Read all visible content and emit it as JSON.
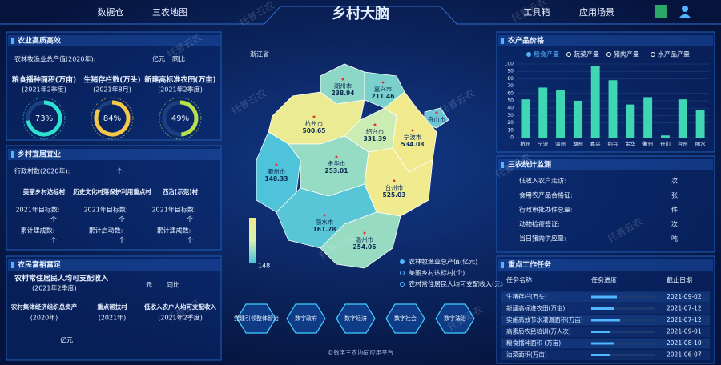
{
  "header": {
    "nav_left": [
      "数据仓",
      "三农地图"
    ],
    "title": "乡村大脑",
    "nav_right": [
      "工具箱",
      "应用场景"
    ]
  },
  "watermark": "托普云农",
  "agri_quality": {
    "title": "农业高质高效",
    "output_label": "农林牧渔业总产值(2020年):",
    "output_unit": "亿元",
    "yoy": "同比",
    "gauges": [
      {
        "name": "粮食播种面积(万亩)",
        "period": "(2021年2季度)",
        "value": 73,
        "label": "73%"
      },
      {
        "name": "生猪存栏数(万头)",
        "period": "(2021年8月)",
        "value": 84,
        "label": "84%"
      },
      {
        "name": "新建高标准农田(万亩)",
        "period": "(2021年2季度)",
        "value": 49,
        "label": "49%"
      }
    ]
  },
  "livable": {
    "title": "乡村宜居宜业",
    "villages_label": "行政村数(2020年):",
    "villages_unit": "个",
    "columns": [
      {
        "name": "美丽乡村达标村",
        "target": "2021年目标数:",
        "target_unit": "个",
        "done": "累计建成数:",
        "done_unit": "个"
      },
      {
        "name": "历史文化村落保护利用重点村",
        "target": "2021年目标数:",
        "target_unit": "个",
        "done": "累计启动数:",
        "done_unit": "个"
      },
      {
        "name": "西治(示范)村",
        "target": "2021年目标数:",
        "target_unit": "个",
        "done": "累计建成数:",
        "done_unit": "个"
      }
    ]
  },
  "income": {
    "title": "农民富裕富足",
    "income_label": "农村常住居民人均可支配收入",
    "income_period": "(2021年2季度)",
    "income_unit": "元",
    "yoy": "同比",
    "items": [
      {
        "name": "农村集体经济组织总资产",
        "period": "(2020年)",
        "unit": "亿元"
      },
      {
        "name": "重点帮扶村",
        "period": "(2021年)"
      },
      {
        "name": "低收入农户人均可支配收入",
        "period": "(2021年2季度)"
      }
    ]
  },
  "map": {
    "title": "浙江省",
    "scale_min": 148,
    "regions": [
      {
        "name": "湖州市",
        "value": 238.94
      },
      {
        "name": "嘉兴市",
        "value": 211.46
      },
      {
        "name": "舟山市"
      },
      {
        "name": "杭州市",
        "value": 500.65
      },
      {
        "name": "绍兴市",
        "value": 331.39
      },
      {
        "name": "宁波市",
        "value": 534.08
      },
      {
        "name": "衢州市",
        "value": 148.33
      },
      {
        "name": "金华市",
        "value": 253.01
      },
      {
        "name": "台州市",
        "value": 525.03
      },
      {
        "name": "丽水市",
        "value": 161.78
      },
      {
        "name": "温州市",
        "value": 254.06
      }
    ],
    "layers": [
      "农林牧渔业总产值(亿元)",
      "美丽乡村达标村(个)",
      "农村常住居民人均可支配收入(元)"
    ],
    "buttons": [
      "党建引领整体智治",
      "数字政府",
      "数字经济",
      "数字社会",
      "数字法治"
    ],
    "footer": "©数字三农协同应用平台"
  },
  "prices": {
    "title": "农产品价格",
    "legend": [
      "粮食产量",
      "蔬菜产量",
      "猪肉产量",
      "水产品产量"
    ],
    "categories": [
      "杭州",
      "宁波",
      "温州",
      "湖州",
      "嘉兴",
      "绍兴",
      "金华",
      "衢州",
      "舟山",
      "台州",
      "丽水"
    ],
    "values": [
      52,
      68,
      65,
      50,
      97,
      78,
      45,
      55,
      3,
      52,
      38
    ],
    "ylim": [
      0,
      100
    ],
    "yticks": [
      0,
      10,
      20,
      30,
      40,
      50,
      60,
      70,
      80,
      90,
      100
    ],
    "color": "#3fd6b4",
    "grid": true
  },
  "stats": {
    "title": "三农统计监测",
    "rows": [
      {
        "label": "低收入农户走访:",
        "unit": "次"
      },
      {
        "label": "食用农产品合格证:",
        "unit": "张"
      },
      {
        "label": "行政审批办件总量:",
        "unit": "件"
      },
      {
        "label": "动物检疫签证:",
        "unit": "次"
      },
      {
        "label": "当日猪肉供应量:",
        "unit": "吨"
      }
    ]
  },
  "tasks": {
    "title": "重点工作任务",
    "columns": [
      "任务名称",
      "任务进度",
      "截止日期"
    ],
    "rows": [
      {
        "name": "生猪存栏(万头)",
        "progress": 40,
        "date": "2021-09-02"
      },
      {
        "name": "新建高标准农田(万亩)",
        "progress": 35,
        "date": "2021-07-12"
      },
      {
        "name": "实施高效节水灌溉面积(万亩)",
        "progress": 45,
        "date": "2021-07-12"
      },
      {
        "name": "高素质农民培训(万人次)",
        "progress": 30,
        "date": "2021-09-01"
      },
      {
        "name": "粮食播种面积 (万亩)",
        "progress": 35,
        "date": "2021-08-10"
      },
      {
        "name": "油菜面积(万亩)",
        "progress": 30,
        "date": "2021-06-07"
      }
    ]
  }
}
